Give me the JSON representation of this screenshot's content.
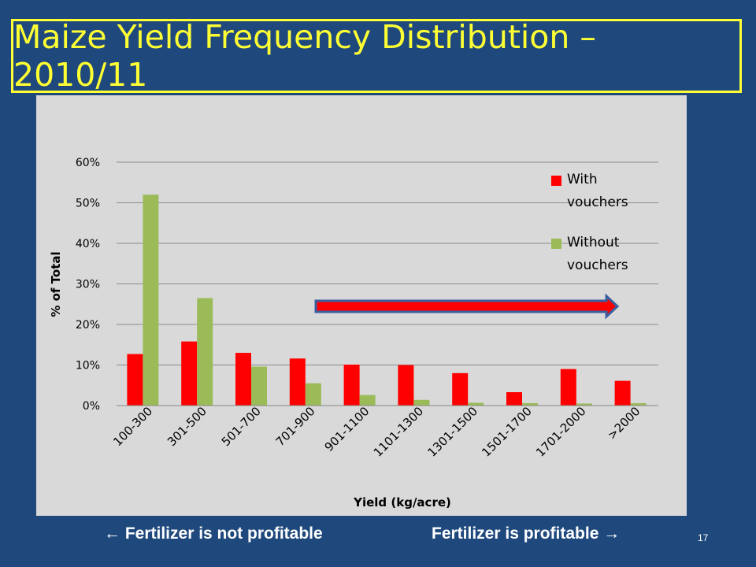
{
  "slide": {
    "title": "Maize Yield Frequency Distribution – 2010/11",
    "footer_left": "← Fertilizer is not profitable",
    "footer_right": "Fertilizer is profitable →",
    "page_number": "17"
  },
  "colors": {
    "background": "#1f497d",
    "title": "#ffff33",
    "with_vouchers": "#ff0000",
    "without_vouchers": "#9bbb59",
    "arrow_fill": "#ff0000",
    "arrow_stroke": "#3a5fa0"
  },
  "chart_data": {
    "type": "bar",
    "title": "",
    "xlabel": "Yield (kg/acre)",
    "ylabel": "% of Total",
    "ylim": [
      0,
      60
    ],
    "yticks": [
      "0%",
      "10%",
      "20%",
      "30%",
      "40%",
      "50%",
      "60%"
    ],
    "grid": true,
    "legend_position": "right",
    "categories": [
      "100-300",
      "301-500",
      "501-700",
      "701-900",
      "901-1100",
      "1101-1300",
      "1301-1500",
      "1501-1700",
      "1701-2000",
      ">2000"
    ],
    "series": [
      {
        "name": "With vouchers",
        "values": [
          12.7,
          15.8,
          13.0,
          11.6,
          10.1,
          10.0,
          8.0,
          3.3,
          9.0,
          6.1
        ]
      },
      {
        "name": "Without vouchers",
        "values": [
          52.0,
          26.5,
          9.6,
          5.5,
          2.6,
          1.4,
          0.7,
          0.6,
          0.5,
          0.6
        ]
      }
    ]
  }
}
